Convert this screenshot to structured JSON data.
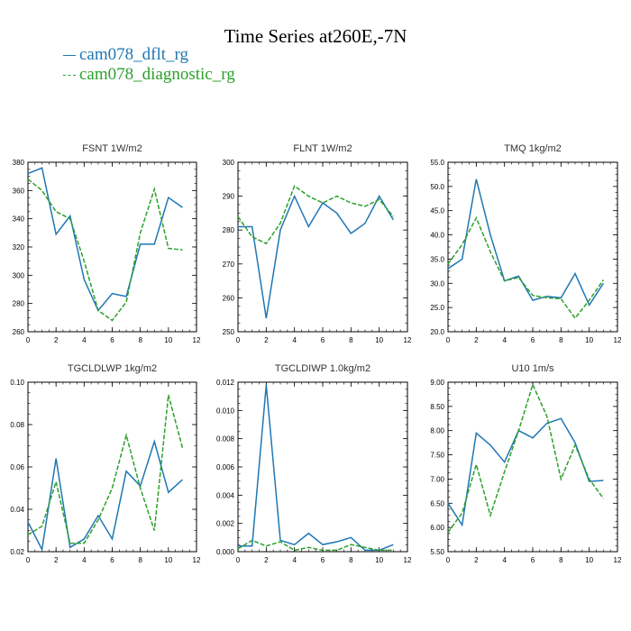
{
  "title": "Time Series at260E,-7N",
  "legend": [
    {
      "name": "cam078_dflt_rg",
      "color": "#1f77b4",
      "dash": false
    },
    {
      "name": "cam078_diagnostic_rg",
      "color": "#2ca02c",
      "dash": true
    }
  ],
  "chart_data": [
    {
      "type": "line",
      "title": "FSNT",
      "units": "1W/m2",
      "x": [
        0,
        1,
        2,
        3,
        4,
        5,
        6,
        7,
        8,
        9,
        10,
        11
      ],
      "xlim": [
        0,
        12
      ],
      "xticks": [
        "0",
        "2",
        "4",
        "6",
        "8",
        "10",
        "12"
      ],
      "ylim": [
        260,
        380
      ],
      "yticks": [
        "260",
        "280",
        "300",
        "320",
        "340",
        "360",
        "380"
      ],
      "series": [
        {
          "name": "cam078_dflt_rg",
          "values": [
            372,
            376,
            329,
            342,
            297,
            275,
            287,
            285,
            322,
            322,
            355,
            348
          ]
        },
        {
          "name": "cam078_diagnostic_rg",
          "values": [
            368,
            360,
            345,
            340,
            310,
            275,
            268,
            281,
            330,
            361,
            319,
            318
          ]
        }
      ]
    },
    {
      "type": "line",
      "title": "FLNT",
      "units": "1W/m2",
      "x": [
        0,
        1,
        2,
        3,
        4,
        5,
        6,
        7,
        8,
        9,
        10,
        11
      ],
      "xlim": [
        0,
        12
      ],
      "xticks": [
        "0",
        "2",
        "4",
        "6",
        "8",
        "10",
        "12"
      ],
      "ylim": [
        250,
        300
      ],
      "yticks": [
        "250",
        "260",
        "270",
        "280",
        "290",
        "300"
      ],
      "series": [
        {
          "name": "cam078_dflt_rg",
          "values": [
            281,
            281,
            254,
            280,
            290,
            281,
            288,
            285,
            279,
            282,
            290,
            283
          ]
        },
        {
          "name": "cam078_diagnostic_rg",
          "values": [
            284,
            278,
            276,
            282,
            293,
            290,
            288,
            290,
            288,
            287,
            289,
            284
          ]
        }
      ]
    },
    {
      "type": "line",
      "title": "TMQ",
      "units": "1kg/m2",
      "x": [
        0,
        1,
        2,
        3,
        4,
        5,
        6,
        7,
        8,
        9,
        10,
        11
      ],
      "xlim": [
        0,
        12
      ],
      "xticks": [
        "0",
        "2",
        "4",
        "6",
        "8",
        "10",
        "12"
      ],
      "ylim": [
        20,
        55
      ],
      "yticks": [
        "20.0",
        "25.0",
        "30.0",
        "35.0",
        "40.0",
        "45.0",
        "50.0",
        "55.0"
      ],
      "series": [
        {
          "name": "cam078_dflt_rg",
          "values": [
            33,
            35,
            51.5,
            40,
            30.5,
            31.5,
            26.5,
            27.3,
            27,
            32,
            25.5,
            30
          ]
        },
        {
          "name": "cam078_diagnostic_rg",
          "values": [
            34,
            38,
            43.5,
            36.5,
            30.5,
            31.2,
            27.5,
            27,
            26.8,
            22.8,
            26.5,
            30.7
          ]
        }
      ]
    },
    {
      "type": "line",
      "title": "TGCLDLWP",
      "units": "1kg/m2",
      "x": [
        0,
        1,
        2,
        3,
        4,
        5,
        6,
        7,
        8,
        9,
        10,
        11
      ],
      "xlim": [
        0,
        12
      ],
      "xticks": [
        "0",
        "2",
        "4",
        "6",
        "8",
        "10",
        "12"
      ],
      "ylim": [
        0.02,
        0.1
      ],
      "yticks": [
        "0.02",
        "0.04",
        "0.06",
        "0.08",
        "0.10"
      ],
      "series": [
        {
          "name": "cam078_dflt_rg",
          "values": [
            0.034,
            0.021,
            0.064,
            0.022,
            0.026,
            0.037,
            0.026,
            0.058,
            0.051,
            0.072,
            0.048,
            0.054
          ]
        },
        {
          "name": "cam078_diagnostic_rg",
          "values": [
            0.028,
            0.032,
            0.053,
            0.024,
            0.024,
            0.035,
            0.05,
            0.075,
            0.05,
            0.03,
            0.094,
            0.069
          ]
        }
      ]
    },
    {
      "type": "line",
      "title": "TGCLDIWP",
      "units": "1.0kg/m2",
      "x": [
        0,
        1,
        2,
        3,
        4,
        5,
        6,
        7,
        8,
        9,
        10,
        11
      ],
      "xlim": [
        0,
        12
      ],
      "xticks": [
        "0",
        "2",
        "4",
        "6",
        "8",
        "10",
        "12"
      ],
      "ylim": [
        0,
        0.012
      ],
      "yticks": [
        "0.000",
        "0.002",
        "0.004",
        "0.006",
        "0.008",
        "0.010",
        "0.012"
      ],
      "series": [
        {
          "name": "cam078_dflt_rg",
          "values": [
            0.0004,
            0.0004,
            0.0118,
            0.0008,
            0.0005,
            0.0013,
            0.0005,
            0.0007,
            0.001,
            0.0001,
            0.0001,
            0.0005
          ]
        },
        {
          "name": "cam078_diagnostic_rg",
          "values": [
            0.0002,
            0.0008,
            0.0004,
            0.0007,
            0.0001,
            0.0003,
            0.0001,
            0.0001,
            0.0005,
            0.0003,
            0.0001,
            0.0001
          ]
        }
      ]
    },
    {
      "type": "line",
      "title": "U10",
      "units": "1m/s",
      "x": [
        0,
        1,
        2,
        3,
        4,
        5,
        6,
        7,
        8,
        9,
        10,
        11
      ],
      "xlim": [
        0,
        12
      ],
      "xticks": [
        "0",
        "2",
        "4",
        "6",
        "8",
        "10",
        "12"
      ],
      "ylim": [
        5.5,
        9
      ],
      "yticks": [
        "5.50",
        "6.00",
        "6.50",
        "7.00",
        "7.50",
        "8.00",
        "8.50",
        "9.00"
      ],
      "series": [
        {
          "name": "cam078_dflt_rg",
          "values": [
            6.5,
            6.05,
            7.95,
            7.7,
            7.35,
            8.0,
            7.85,
            8.15,
            8.25,
            7.75,
            6.95,
            6.97
          ]
        },
        {
          "name": "cam078_diagnostic_rg",
          "values": [
            5.9,
            6.3,
            7.3,
            6.25,
            7.15,
            8.0,
            8.95,
            8.3,
            7.0,
            7.7,
            7.0,
            6.6
          ]
        }
      ]
    }
  ]
}
